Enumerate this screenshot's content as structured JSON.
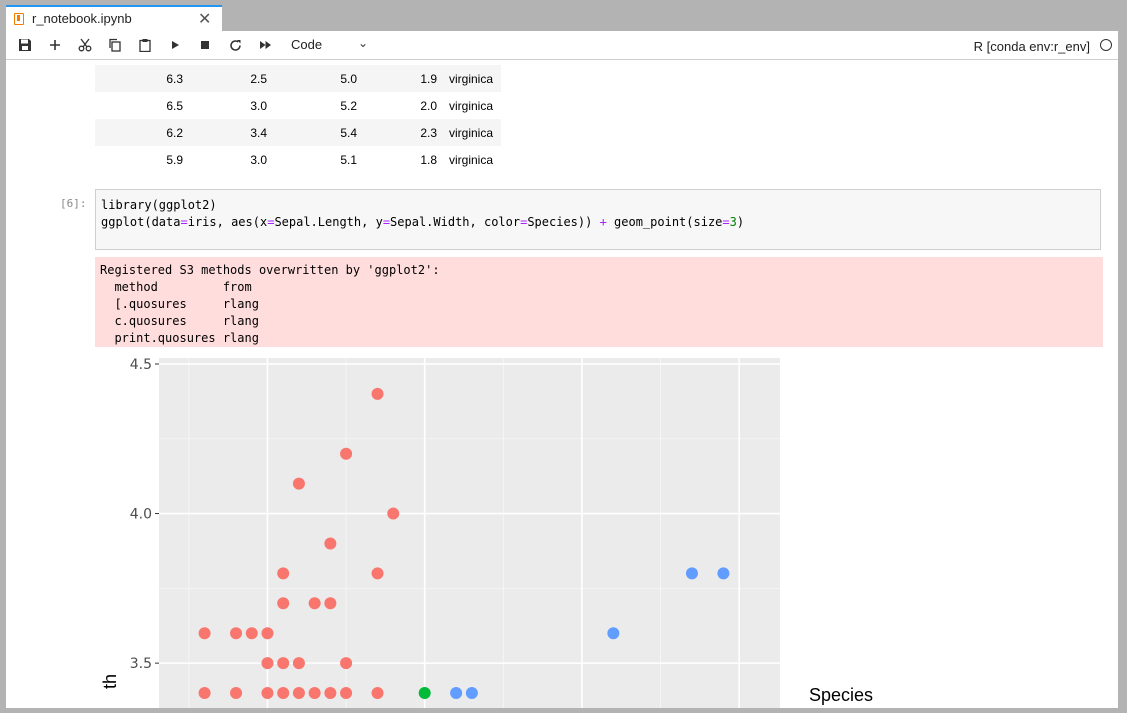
{
  "tab": {
    "title": "r_notebook.ipynb",
    "close": "✕"
  },
  "toolbar": {
    "cell_type": "Code",
    "kernel": "R [conda env:r_env]"
  },
  "dataframe_rows": [
    [
      "6.3",
      "2.5",
      "5.0",
      "1.9",
      "virginica"
    ],
    [
      "6.5",
      "3.0",
      "5.2",
      "2.0",
      "virginica"
    ],
    [
      "6.2",
      "3.4",
      "5.4",
      "2.3",
      "virginica"
    ],
    [
      "5.9",
      "3.0",
      "5.1",
      "1.8",
      "virginica"
    ]
  ],
  "cell": {
    "prompt": "[6]:",
    "code_line1": "library(ggplot2)",
    "code_line2_parts": {
      "a": "ggplot(data",
      "eq": "=",
      "b": "iris, aes(x",
      "c": "Sepal.Length, y",
      "d": "Sepal.Width, color",
      "e": "Species)) ",
      "plus": "+",
      "f": " geom_point(size",
      "g": "3",
      "h": ")"
    }
  },
  "stderr_lines": [
    "Registered S3 methods overwritten by 'ggplot2':",
    "  method         from ",
    "  [.quosures     rlang",
    "  c.quosures     rlang",
    "  print.quosures rlang"
  ],
  "chart_data": {
    "type": "scatter",
    "y_tick_labels": [
      "3.5",
      "4.0",
      "4.5"
    ],
    "y_ticks": [
      3.5,
      4.0,
      4.5
    ],
    "ylim_visible": [
      3.35,
      4.52
    ],
    "xlim_visible": [
      4.31,
      8.26
    ],
    "ylabel_visible_fragment": "th",
    "legend_title": "Species",
    "grid": true,
    "colors": {
      "setosa": "#f8766d",
      "versicolor": "#00ba38",
      "virginica": "#619cff"
    },
    "series": [
      {
        "color_key": "setosa",
        "points": [
          [
            4.8,
            3.4
          ],
          [
            5.0,
            3.4
          ],
          [
            5.2,
            3.4
          ],
          [
            5.4,
            3.4
          ],
          [
            5.5,
            3.4
          ],
          [
            5.7,
            3.4
          ],
          [
            5.1,
            3.4
          ],
          [
            5.3,
            3.4
          ],
          [
            4.8,
            3.6
          ],
          [
            4.9,
            3.6
          ],
          [
            5.0,
            3.6
          ],
          [
            5.0,
            3.5
          ],
          [
            5.1,
            3.5
          ],
          [
            5.2,
            3.5
          ],
          [
            5.5,
            3.5
          ],
          [
            5.1,
            3.7
          ],
          [
            5.3,
            3.7
          ],
          [
            5.4,
            3.7
          ],
          [
            5.1,
            3.8
          ],
          [
            5.7,
            3.8
          ],
          [
            5.4,
            3.9
          ],
          [
            5.8,
            4.0
          ],
          [
            5.2,
            4.1
          ],
          [
            5.5,
            4.2
          ],
          [
            5.7,
            4.4
          ],
          [
            4.6,
            3.4
          ],
          [
            4.6,
            3.6
          ]
        ]
      },
      {
        "color_key": "versicolor",
        "points": [
          [
            6.0,
            3.4
          ]
        ]
      },
      {
        "color_key": "virginica",
        "points": [
          [
            6.2,
            3.4
          ],
          [
            6.3,
            3.4
          ],
          [
            7.2,
            3.6
          ],
          [
            7.7,
            3.8
          ],
          [
            7.9,
            3.8
          ]
        ]
      }
    ]
  }
}
